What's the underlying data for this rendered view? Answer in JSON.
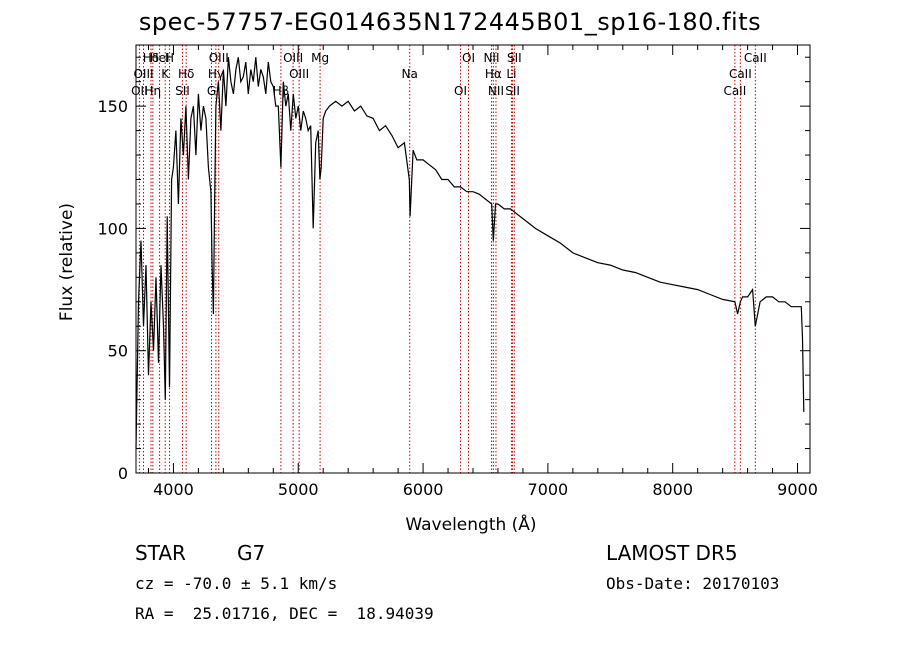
{
  "chart_data": {
    "type": "line",
    "title": "spec-57757-EG014635N172445B01_sp16-180.fits",
    "xlabel": "Wavelength (Å)",
    "ylabel": "Flux (relative)",
    "xlim": [
      3700,
      9100
    ],
    "ylim": [
      0,
      175
    ],
    "xticks": [
      4000,
      5000,
      6000,
      7000,
      8000,
      9000
    ],
    "yticks": [
      0,
      50,
      100,
      150
    ],
    "series": [
      {
        "x": [
          3700,
          3720,
          3740,
          3760,
          3780,
          3800,
          3820,
          3840,
          3860,
          3880,
          3900,
          3920,
          3935,
          3950,
          3968,
          3985,
          4000,
          4020,
          4040,
          4060,
          4080,
          4100,
          4120,
          4140,
          4160,
          4180,
          4200,
          4220,
          4240,
          4260,
          4280,
          4300,
          4310,
          4320,
          4330,
          4340,
          4360,
          4380,
          4400,
          4420,
          4440,
          4460,
          4480,
          4500,
          4520,
          4540,
          4560,
          4580,
          4600,
          4620,
          4640,
          4660,
          4680,
          4700,
          4720,
          4740,
          4760,
          4780,
          4800,
          4820,
          4840,
          4861,
          4880,
          4900,
          4920,
          4940,
          4960,
          4980,
          5000,
          5020,
          5040,
          5060,
          5080,
          5100,
          5120,
          5140,
          5160,
          5173,
          5184,
          5200,
          5220,
          5250,
          5300,
          5350,
          5400,
          5450,
          5500,
          5550,
          5600,
          5650,
          5700,
          5750,
          5800,
          5850,
          5890,
          5896,
          5920,
          5950,
          6000,
          6050,
          6100,
          6150,
          6200,
          6250,
          6300,
          6350,
          6400,
          6450,
          6500,
          6550,
          6563,
          6580,
          6600,
          6650,
          6700,
          6750,
          6800,
          6900,
          7000,
          7100,
          7200,
          7300,
          7400,
          7500,
          7600,
          7700,
          7800,
          7900,
          8000,
          8100,
          8200,
          8300,
          8400,
          8498,
          8520,
          8542,
          8560,
          8600,
          8640,
          8662,
          8700,
          8750,
          8800,
          8850,
          8900,
          8950,
          9000,
          9030,
          9040,
          9050
        ],
        "values": [
          10,
          70,
          95,
          60,
          85,
          40,
          70,
          50,
          80,
          45,
          85,
          60,
          30,
          105,
          35,
          120,
          125,
          140,
          110,
          145,
          130,
          150,
          120,
          145,
          150,
          130,
          155,
          140,
          150,
          145,
          125,
          115,
          85,
          65,
          110,
          150,
          160,
          140,
          165,
          150,
          170,
          160,
          155,
          165,
          170,
          160,
          162,
          168,
          155,
          165,
          160,
          170,
          158,
          165,
          162,
          155,
          168,
          160,
          158,
          150,
          150,
          125,
          160,
          150,
          155,
          140,
          155,
          145,
          150,
          140,
          148,
          145,
          140,
          142,
          100,
          135,
          140,
          120,
          125,
          145,
          148,
          150,
          152,
          150,
          152,
          148,
          150,
          146,
          145,
          140,
          142,
          138,
          133,
          135,
          120,
          105,
          132,
          128,
          128,
          126,
          124,
          120,
          120,
          117,
          117,
          115,
          115,
          114,
          112,
          110,
          95,
          110,
          110,
          108,
          108,
          106,
          104,
          100,
          97,
          94,
          90,
          88,
          86,
          85,
          83,
          82,
          80,
          78,
          77,
          76,
          75,
          73,
          71,
          70,
          65,
          70,
          72,
          72,
          75,
          60,
          70,
          72,
          72,
          70,
          70,
          68,
          68,
          68,
          55,
          25
        ]
      }
    ],
    "lines": [
      {
        "label": "Hδ",
        "x": 3820
      },
      {
        "label": "K",
        "x": 3934
      },
      {
        "label": "OII",
        "x": 3727
      },
      {
        "label": "HeI",
        "x": 3889
      },
      {
        "label": "OIII",
        "x": 3760
      },
      {
        "label": "Hη",
        "x": 3835
      },
      {
        "label": "H",
        "x": 3969
      },
      {
        "label": "Hδ",
        "x": 4102
      },
      {
        "label": "SII",
        "x": 4072
      },
      {
        "label": "OIII",
        "x": 4363
      },
      {
        "label": "Hγ",
        "x": 4340
      },
      {
        "label": "G",
        "x": 4305
      },
      {
        "label": "OIII",
        "x": 4959
      },
      {
        "label": "OIII",
        "x": 5007
      },
      {
        "label": "Hβ",
        "x": 4861
      },
      {
        "label": "Mg",
        "x": 5175
      },
      {
        "label": "Na",
        "x": 5893
      },
      {
        "label": "OI",
        "x": 6300
      },
      {
        "label": "OI",
        "x": 6364
      },
      {
        "label": "Hα",
        "x": 6563
      },
      {
        "label": "SII",
        "x": 6717
      },
      {
        "label": "NII",
        "x": 6548
      },
      {
        "label": "Li",
        "x": 6708
      },
      {
        "label": "NII",
        "x": 6584
      },
      {
        "label": "SII",
        "x": 6731
      },
      {
        "label": "CaII",
        "x": 8542
      },
      {
        "label": "CaII",
        "x": 8498
      },
      {
        "label": "CaII",
        "x": 8662
      }
    ]
  },
  "info": {
    "object_type": "STAR",
    "subclass": "G7",
    "survey": "LAMOST DR5",
    "cz": "cz = -70.0 ± 5.1 km/s",
    "obs_date": "Obs-Date: 20170103",
    "coords": "RA =  25.01716, DEC =  18.94039"
  },
  "colors": {
    "line": "#000000",
    "marker": "#cc0000"
  }
}
